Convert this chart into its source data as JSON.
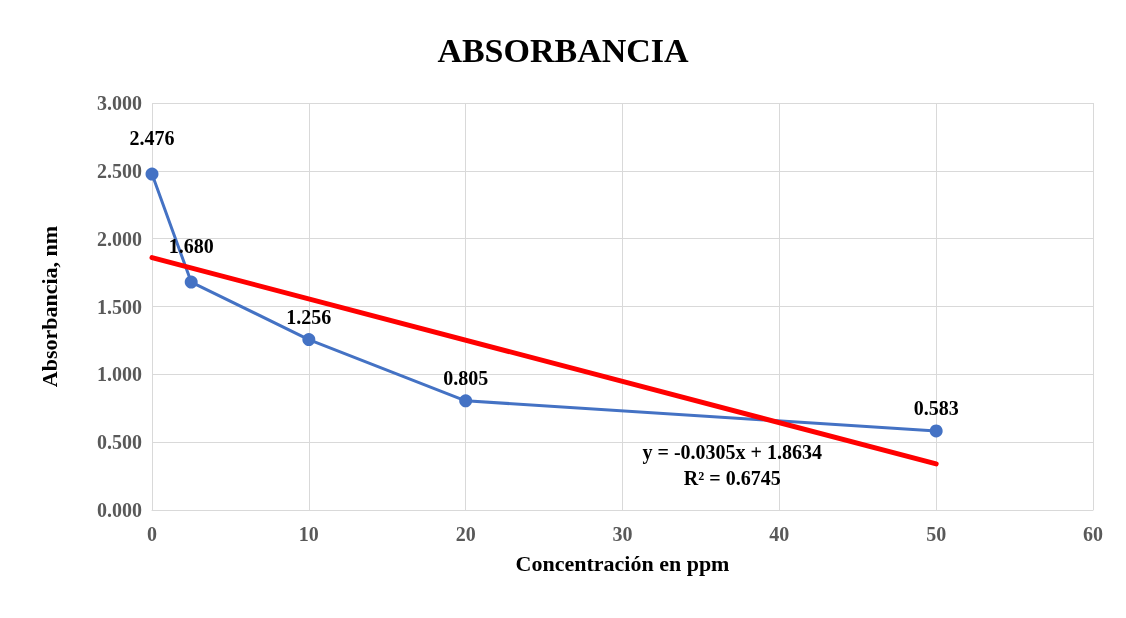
{
  "chart_data": {
    "type": "line",
    "title": "ABSORBANCIA",
    "xlabel": "Concentración en ppm",
    "ylabel": "Absorbancia, nm",
    "x": [
      0,
      2.5,
      10,
      20,
      50
    ],
    "series": [
      {
        "color": "#4472c4",
        "values": [
          2.476,
          1.68,
          1.256,
          0.805,
          0.583
        ],
        "value_labels": [
          "2.476",
          "1.680",
          "1.256",
          "0.805",
          "0.583"
        ]
      },
      {
        "type": "line",
        "color": "#ff0000",
        "x": [
          0,
          50
        ],
        "values": [
          1.86,
          0.34
        ],
        "marker": "none"
      }
    ],
    "xlim": [
      0,
      60
    ],
    "xticks": [
      0,
      10,
      20,
      30,
      40,
      50,
      60
    ],
    "ylim": [
      0,
      3
    ],
    "yticks": [
      {
        "value": 0,
        "label": "0.000"
      },
      {
        "value": 0.5,
        "label": "0.500"
      },
      {
        "value": 1,
        "label": "1.000"
      },
      {
        "value": 1.5,
        "label": "1.500"
      },
      {
        "value": 2,
        "label": "2.000"
      },
      {
        "value": 2.5,
        "label": "2.500"
      },
      {
        "value": 3,
        "label": "3.000"
      }
    ],
    "annotations": [
      "y = -0.0305x + 1.8634\nR² = 0.6745"
    ],
    "grid": true,
    "marker": "circle",
    "line_style": "solid"
  }
}
